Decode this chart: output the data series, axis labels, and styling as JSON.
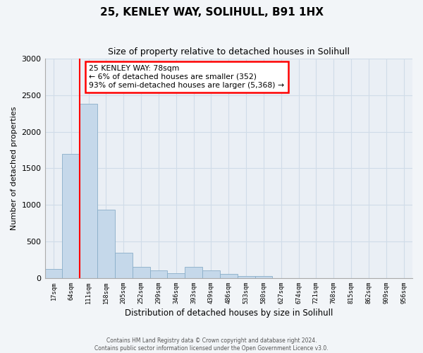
{
  "title": "25, KENLEY WAY, SOLIHULL, B91 1HX",
  "subtitle": "Size of property relative to detached houses in Solihull",
  "xlabel": "Distribution of detached houses by size in Solihull",
  "ylabel": "Number of detached properties",
  "bar_color": "#c5d8ea",
  "bar_edgecolor": "#8aaec8",
  "axes_facecolor": "#eaeff5",
  "fig_facecolor": "#f2f5f8",
  "grid_color": "#d0dce8",
  "categories": [
    "17sqm",
    "64sqm",
    "111sqm",
    "158sqm",
    "205sqm",
    "252sqm",
    "299sqm",
    "346sqm",
    "393sqm",
    "439sqm",
    "486sqm",
    "533sqm",
    "580sqm",
    "627sqm",
    "674sqm",
    "721sqm",
    "768sqm",
    "815sqm",
    "862sqm",
    "909sqm",
    "956sqm"
  ],
  "values": [
    120,
    1700,
    2380,
    930,
    340,
    155,
    100,
    60,
    155,
    100,
    55,
    30,
    30,
    0,
    0,
    0,
    0,
    0,
    0,
    0,
    0
  ],
  "ylim": [
    0,
    3000
  ],
  "yticks": [
    0,
    500,
    1000,
    1500,
    2000,
    2500,
    3000
  ],
  "red_line_index": 2,
  "annotation_text": "25 KENLEY WAY: 78sqm\n← 6% of detached houses are smaller (352)\n93% of semi-detached houses are larger (5,368) →",
  "footer_line1": "Contains HM Land Registry data © Crown copyright and database right 2024.",
  "footer_line2": "Contains public sector information licensed under the Open Government Licence v3.0."
}
